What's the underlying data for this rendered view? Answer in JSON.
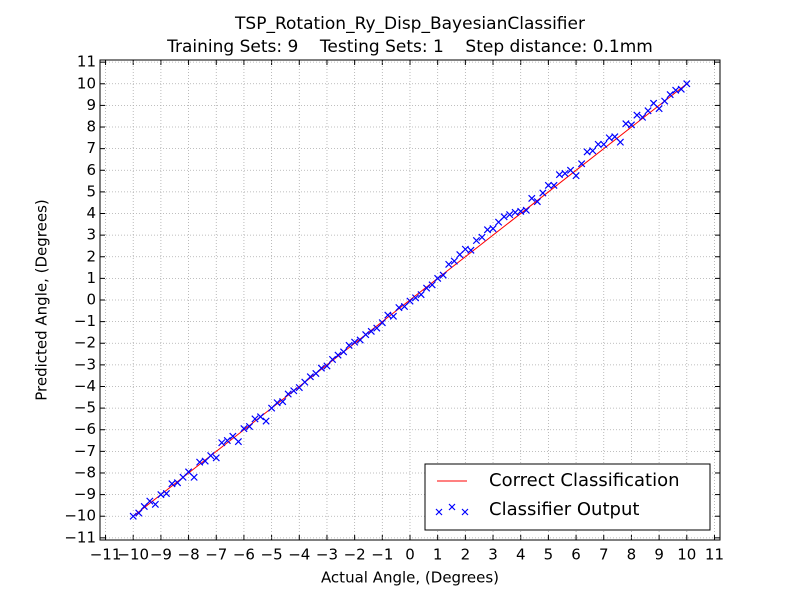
{
  "chart_data": {
    "type": "scatter",
    "title": "TSP_Rotation_Ry_Disp_BayesianClassifier",
    "subtitle": "Training Sets: 9    Testing Sets: 1    Step distance: 0.1mm",
    "x_label": "Actual Angle, (Degrees)",
    "y_label": "Predicted Angle, (Degrees)",
    "xlim": [
      -11.2,
      11.2
    ],
    "ylim": [
      -11.1,
      11.1
    ],
    "xticks": [
      {
        "value": -11,
        "label": "−11"
      },
      {
        "value": -10,
        "label": "−10"
      },
      {
        "value": -9,
        "label": "−9"
      },
      {
        "value": -8,
        "label": "−8"
      },
      {
        "value": -7,
        "label": "−7"
      },
      {
        "value": -6,
        "label": "−6"
      },
      {
        "value": -5,
        "label": "−5"
      },
      {
        "value": -4,
        "label": "−4"
      },
      {
        "value": -3,
        "label": "−3"
      },
      {
        "value": -2,
        "label": "−2"
      },
      {
        "value": -1,
        "label": "−1"
      },
      0,
      1,
      2,
      3,
      4,
      5,
      6,
      7,
      8,
      9,
      10,
      11
    ],
    "yticks": [
      {
        "value": -11,
        "label": "−11"
      },
      {
        "value": -10,
        "label": "−10"
      },
      {
        "value": -9,
        "label": "−9"
      },
      {
        "value": -8,
        "label": "−8"
      },
      {
        "value": -7,
        "label": "−7"
      },
      {
        "value": -6,
        "label": "−6"
      },
      {
        "value": -5,
        "label": "−5"
      },
      {
        "value": -4,
        "label": "−4"
      },
      {
        "value": -3,
        "label": "−3"
      },
      {
        "value": -2,
        "label": "−2"
      },
      {
        "value": -1,
        "label": "−1"
      },
      0,
      1,
      2,
      3,
      4,
      5,
      6,
      7,
      8,
      9,
      10,
      11
    ],
    "grid": true,
    "legend": "lower right",
    "series": [
      {
        "name": "Correct Classification",
        "type": "line",
        "color": "#ff0000",
        "x": [
          -10,
          10
        ],
        "values": [
          -10,
          10
        ]
      },
      {
        "name": "Classifier Output",
        "type": "scatter",
        "color": "#0000ff",
        "x": [
          -10,
          -9.8,
          -9.6,
          -9.4,
          -9.2,
          -9,
          -8.8,
          -8.6,
          -8.4,
          -8.2,
          -8,
          -7.8,
          -7.6,
          -7.4,
          -7.2,
          -7,
          -6.8,
          -6.6,
          -6.4,
          -6.2,
          -6,
          -5.8,
          -5.6,
          -5.4,
          -5.2,
          -5,
          -4.8,
          -4.6,
          -4.4,
          -4.2,
          -4,
          -3.8,
          -3.6,
          -3.4,
          -3.2,
          -3,
          -2.8,
          -2.6,
          -2.4,
          -2.2,
          -2,
          -1.8,
          -1.6,
          -1.4,
          -1.2,
          -1,
          -0.8,
          -0.6,
          -0.4,
          -0.2,
          0,
          0.2,
          0.4,
          0.6,
          0.8,
          1,
          1.2,
          1.4,
          1.6,
          1.8,
          2,
          2.2,
          2.4,
          2.6,
          2.8,
          3,
          3.2,
          3.4,
          3.6,
          3.8,
          4,
          4.2,
          4.4,
          4.6,
          4.8,
          5,
          5.2,
          5.4,
          5.6,
          5.8,
          6,
          6.2,
          6.4,
          6.6,
          6.8,
          7,
          7.2,
          7.4,
          7.6,
          7.8,
          8,
          8.2,
          8.4,
          8.6,
          8.8,
          9,
          9.2,
          9.4,
          9.6,
          9.8,
          10
        ],
        "values": [
          -10,
          -9.85,
          -9.55,
          -9.3,
          -9.45,
          -9,
          -8.95,
          -8.5,
          -8.45,
          -8.2,
          -7.95,
          -8.2,
          -7.5,
          -7.45,
          -7.2,
          -7.3,
          -6.6,
          -6.5,
          -6.3,
          -6.55,
          -5.95,
          -5.85,
          -5.5,
          -5.4,
          -5.6,
          -5,
          -4.75,
          -4.7,
          -4.35,
          -4.2,
          -4.05,
          -3.8,
          -3.55,
          -3.4,
          -3.15,
          -3.05,
          -2.75,
          -2.55,
          -2.4,
          -2.1,
          -1.95,
          -1.85,
          -1.6,
          -1.45,
          -1.3,
          -1.05,
          -0.7,
          -0.75,
          -0.35,
          -0.3,
          -0.05,
          0.1,
          0.25,
          0.55,
          0.7,
          1,
          1.15,
          1.65,
          1.8,
          2.1,
          2.35,
          2.3,
          2.75,
          2.9,
          3.25,
          3.3,
          3.6,
          3.85,
          3.95,
          4.05,
          4.1,
          4.15,
          4.7,
          4.55,
          4.95,
          5.3,
          5.3,
          5.8,
          5.85,
          6,
          5.75,
          6.3,
          6.85,
          6.9,
          7.2,
          7.2,
          7.5,
          7.55,
          7.3,
          8.15,
          8.1,
          8.55,
          8.45,
          8.75,
          9.1,
          8.85,
          9.2,
          9.5,
          9.7,
          9.75,
          10
        ]
      }
    ]
  }
}
